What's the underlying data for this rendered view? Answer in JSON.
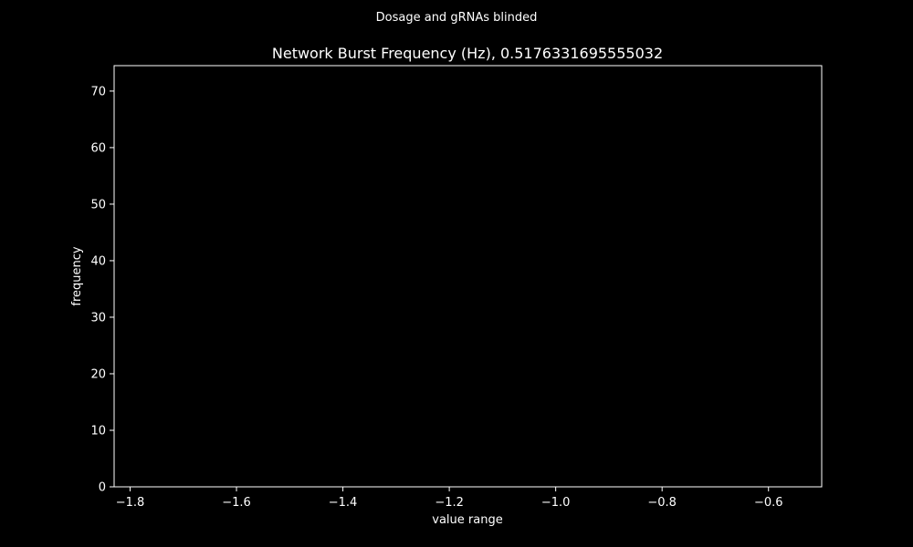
{
  "chart_data": {
    "type": "bar",
    "suptitle": "Dosage and gRNAs blinded",
    "title": "Network Burst Frequency (Hz), 0.5176331695555032",
    "xlabel": "value range",
    "ylabel": "frequency",
    "xlim": [
      -1.83,
      -0.5
    ],
    "ylim": [
      0,
      74.5
    ],
    "xticks": [
      -1.8,
      -1.6,
      -1.4,
      -1.2,
      -1.0,
      -0.8,
      -0.6
    ],
    "xtick_labels": [
      "−1.8",
      "−1.6",
      "−1.4",
      "−1.2",
      "−1.0",
      "−0.8",
      "−0.6"
    ],
    "yticks": [
      0,
      10,
      20,
      30,
      40,
      50,
      60,
      70
    ],
    "ytick_labels": [
      "0",
      "10",
      "20",
      "30",
      "40",
      "50",
      "60",
      "70"
    ],
    "series": [
      {
        "values": [],
        "bins": []
      }
    ],
    "grid": false,
    "colors": {
      "background": "#000000",
      "foreground": "#ffffff"
    }
  }
}
